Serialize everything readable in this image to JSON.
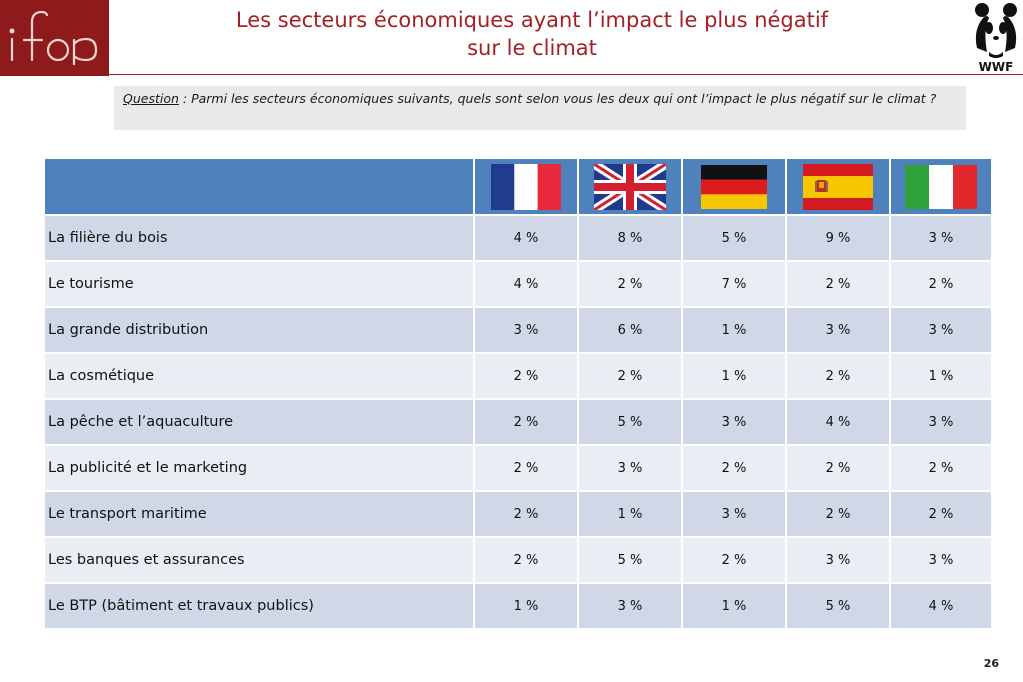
{
  "header": {
    "title_line1": "Les secteurs économiques ayant l’impact le plus négatif",
    "title_line2": "sur le climat",
    "logo_left_text": "ifop",
    "logo_right_text": "WWF"
  },
  "question": {
    "label": "Question",
    "text": " : Parmi les secteurs économiques suivants, quels sont selon vous les deux qui ont l’impact le plus négatif sur le climat ?"
  },
  "table": {
    "countries": [
      "france-flag",
      "uk-flag",
      "germany-flag",
      "spain-flag",
      "italy-flag"
    ],
    "rows": [
      {
        "label": "La filière du bois",
        "values": [
          "4 %",
          "8 %",
          "5 %",
          "9 %",
          "3 %"
        ]
      },
      {
        "label": "Le tourisme",
        "values": [
          "4 %",
          "2 %",
          "7 %",
          "2 %",
          "2 %"
        ]
      },
      {
        "label": "La grande distribution",
        "values": [
          "3 %",
          "6 %",
          "1 %",
          "3 %",
          "3 %"
        ]
      },
      {
        "label": "La cosmétique",
        "values": [
          "2 %",
          "2 %",
          "1 %",
          "2 %",
          "1 %"
        ]
      },
      {
        "label": "La pêche et l’aquaculture",
        "values": [
          "2 %",
          "5 %",
          "3 %",
          "4 %",
          "3 %"
        ]
      },
      {
        "label": "La publicité et le marketing",
        "values": [
          "2 %",
          "3 %",
          "2 %",
          "2 %",
          "2 %"
        ]
      },
      {
        "label": "Le transport maritime",
        "values": [
          "2 %",
          "1 %",
          "3 %",
          "2 %",
          "2 %"
        ]
      },
      {
        "label": "Les banques et assurances",
        "values": [
          "2 %",
          "5 %",
          "2 %",
          "3 %",
          "3 %"
        ]
      },
      {
        "label": "Le BTP (bâtiment et travaux publics)",
        "values": [
          "1 %",
          "3 %",
          "1 %",
          "5 %",
          "4 %"
        ]
      }
    ]
  },
  "footer": {
    "page_number": "26"
  },
  "colors": {
    "brand_red": "#a52024",
    "header_blue": "#4f81bd",
    "row_dark": "#d0d8e8",
    "row_light": "#e9edf4"
  }
}
